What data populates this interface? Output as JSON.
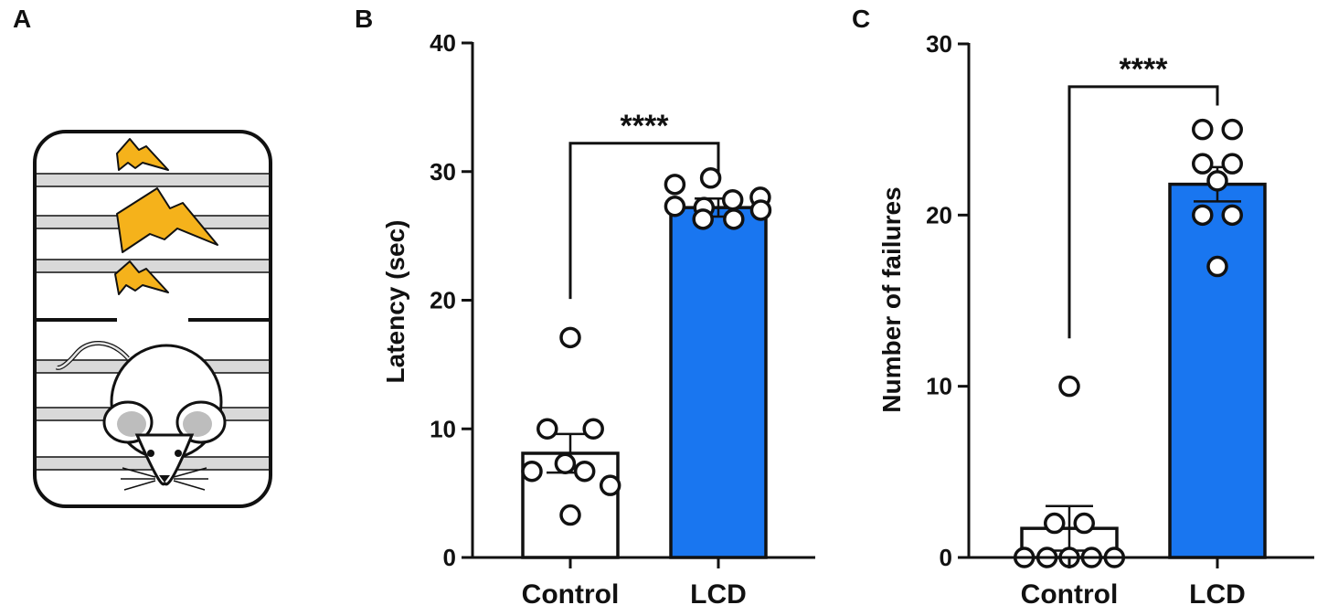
{
  "panels": {
    "a": "A",
    "b": "B",
    "c": "C"
  },
  "colors": {
    "control_fill": "#ffffff",
    "lcd_fill": "#1976f0",
    "stroke": "#111111",
    "bolt": "#f5b21b",
    "rung": "#d9d9d9"
  },
  "icons": [
    "shuttle-box-icon",
    "lightning-bolt-icon",
    "mouse-icon"
  ],
  "chart_data": [
    {
      "type": "bar",
      "panel": "B",
      "categories": [
        "Control",
        "LCD"
      ],
      "values": [
        8.1,
        27.2
      ],
      "error": [
        1.5,
        0.7
      ],
      "points": [
        [
          17.1,
          10.0,
          10.0,
          6.7,
          7.3,
          6.7,
          5.6,
          3.3
        ],
        [
          29.0,
          27.2,
          27.8,
          28.0,
          29.5,
          27.3,
          27.0,
          26.3,
          26.3
        ]
      ],
      "title": "",
      "xlabel": "",
      "ylabel": "Latency (sec)",
      "ylim": [
        0,
        40
      ],
      "yticks": [
        0,
        10,
        20,
        30,
        40
      ],
      "significance": {
        "label": "****",
        "between": [
          "Control",
          "LCD"
        ],
        "level": 32.2
      }
    },
    {
      "type": "bar",
      "panel": "C",
      "categories": [
        "Control",
        "LCD"
      ],
      "values": [
        1.7,
        21.8
      ],
      "error": [
        1.3,
        1.0
      ],
      "points": [
        [
          10.0,
          2.0,
          2.0,
          0.0,
          0.0,
          0.0,
          0.0,
          0.0
        ],
        [
          25.0,
          25.0,
          23.0,
          23.0,
          22.0,
          20.0,
          20.0,
          17.0
        ]
      ],
      "title": "",
      "xlabel": "",
      "ylabel": "Number of failures",
      "ylim": [
        0,
        30
      ],
      "yticks": [
        0,
        10,
        20,
        30
      ],
      "significance": {
        "label": "****",
        "between": [
          "Control",
          "LCD"
        ],
        "level": 27.5
      }
    }
  ]
}
